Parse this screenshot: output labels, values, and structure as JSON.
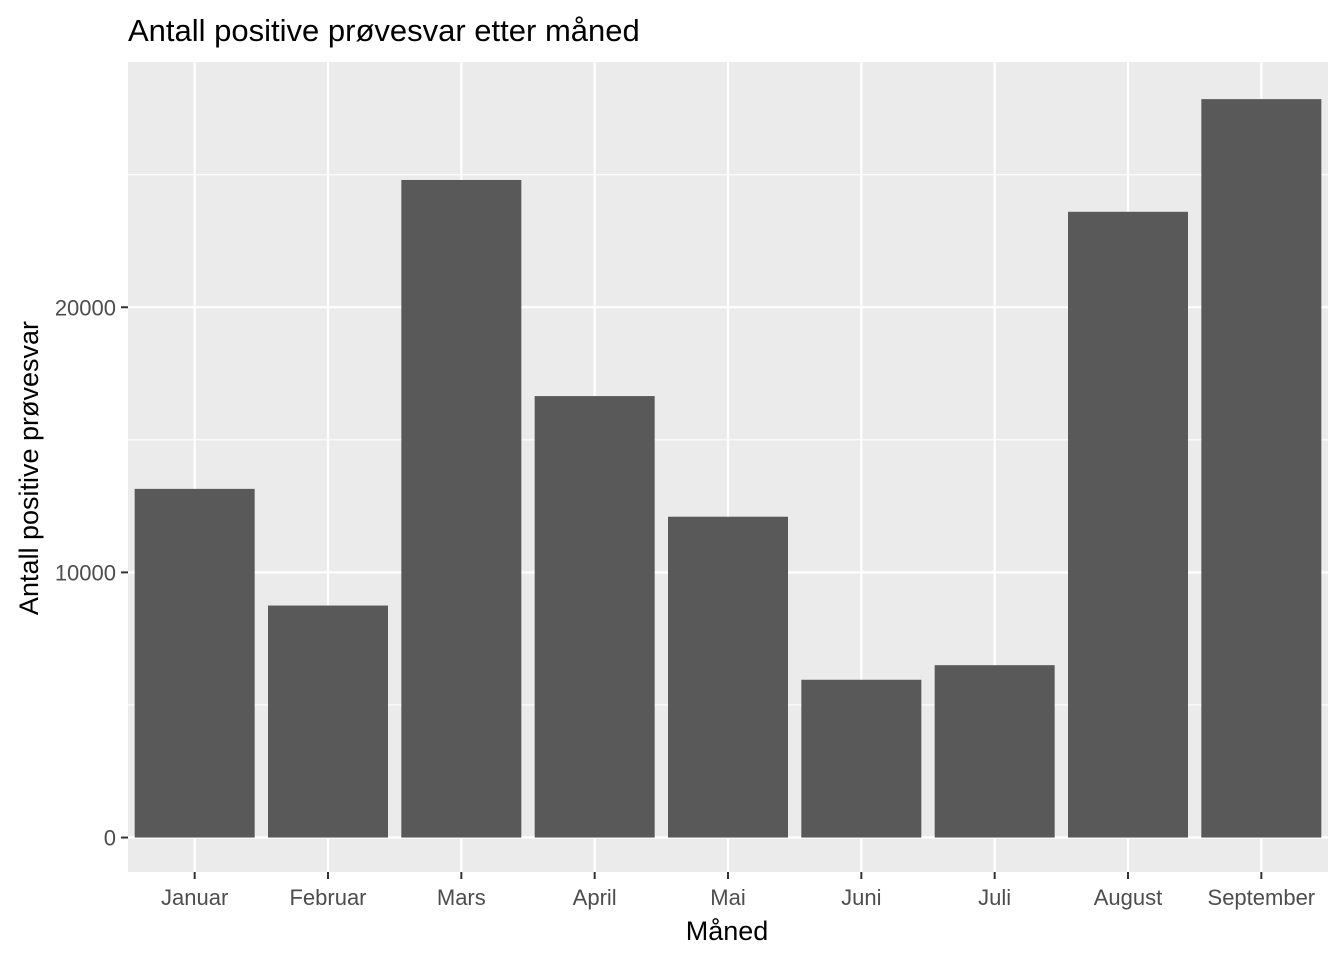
{
  "chart_data": {
    "type": "bar",
    "title": "Antall positive prøvesvar etter måned",
    "xlabel": "Måned",
    "ylabel": "Antall positive prøvesvar",
    "categories": [
      "Januar",
      "Februar",
      "Mars",
      "April",
      "Mai",
      "Juni",
      "Juli",
      "August",
      "September"
    ],
    "values": [
      13150,
      8750,
      24800,
      16650,
      12100,
      5950,
      6500,
      23600,
      27850
    ],
    "ylim": [
      -1300,
      29250
    ],
    "yticks": [
      0,
      10000,
      20000
    ],
    "ytick_labels": [
      "0",
      "10000",
      "20000"
    ],
    "grid": true,
    "legend": "none",
    "colors": {
      "bar": "#595959",
      "panel_background": "#ebebeb",
      "grid": "#ffffff",
      "tick_text": "#4d4d4d",
      "tick_mark": "#333333"
    }
  }
}
